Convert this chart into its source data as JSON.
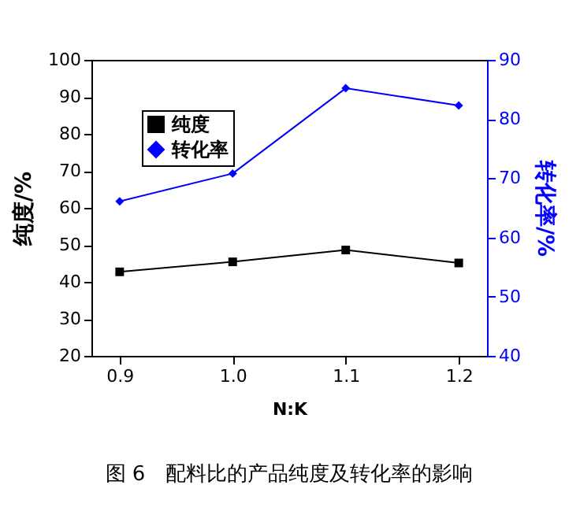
{
  "chart_data": {
    "type": "line",
    "x": [
      0.9,
      1.0,
      1.1,
      1.2
    ],
    "xlim": [
      0.875,
      1.225
    ],
    "xticks": [
      {
        "value": 0.9,
        "label": "0.9"
      },
      {
        "value": 1.0,
        "label": "1.0"
      },
      {
        "value": 1.1,
        "label": "1.1"
      },
      {
        "value": 1.2,
        "label": "1.2"
      }
    ],
    "ylim": [
      20,
      100
    ],
    "yticks": [
      20,
      30,
      40,
      50,
      60,
      70,
      80,
      90,
      100
    ],
    "y2lim": [
      40,
      90
    ],
    "y2ticks": [
      40,
      50,
      60,
      70,
      80,
      90
    ],
    "xlabel": "N:K",
    "ylabel": "纯度/%",
    "y2label": "转化率/%",
    "series": [
      {
        "name": "纯度",
        "color": "#000000",
        "marker": "square",
        "values": [
          42.7,
          45.4,
          48.6,
          45.1
        ]
      },
      {
        "name": "转化率",
        "color": "#0000ff",
        "marker": "diamond",
        "axis": "y2",
        "values": [
          66.1,
          70.8,
          85.2,
          82.3
        ]
      }
    ],
    "legend": "top left",
    "grid": false,
    "annotations": [
      "图 6　配料比的产品纯度及转化率的影响"
    ]
  }
}
